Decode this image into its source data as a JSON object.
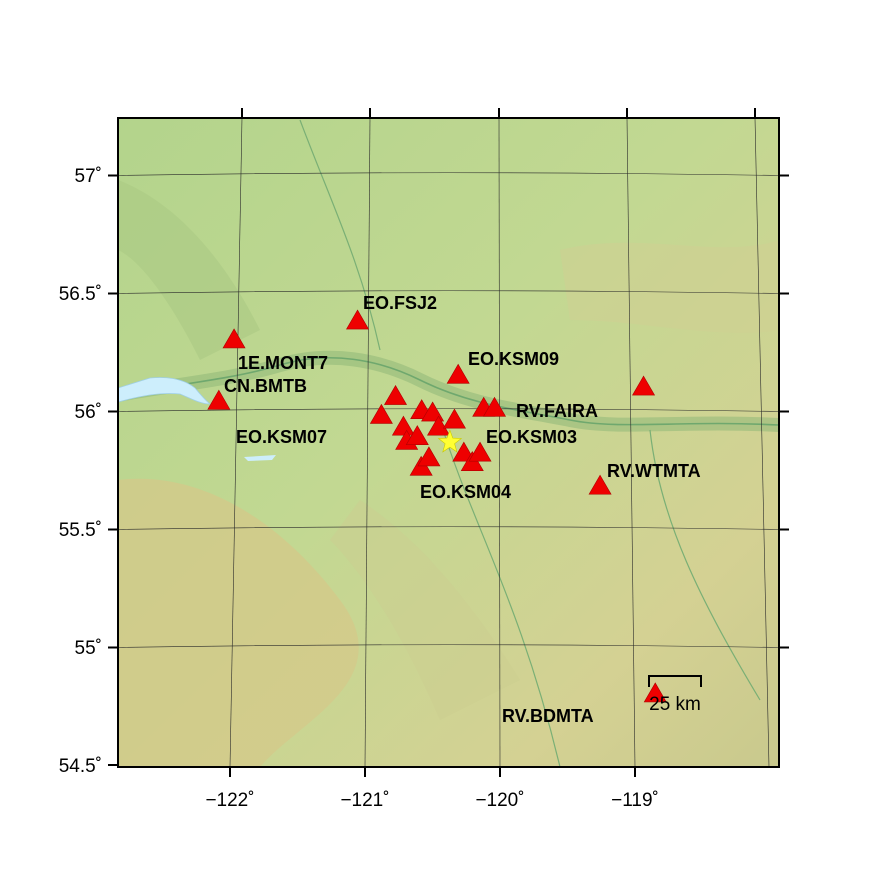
{
  "map": {
    "longitude_ticks": [
      "−122˚",
      "−121˚",
      "−120˚",
      "−119˚"
    ],
    "latitude_ticks": [
      "57˚",
      "56.5˚",
      "56˚",
      "55.5˚",
      "55˚",
      "54.5˚"
    ],
    "scale_bar": {
      "label": "25 km",
      "distance_km": 25
    },
    "colors": {
      "terrain_low": "#b9d58e",
      "terrain_high": "#d8cc92",
      "water": "#cdeefc",
      "station": "#ee0000",
      "epicenter": "#ffff33"
    },
    "epicenter": {
      "lon": -120.38,
      "lat": 55.87,
      "icon": "star-icon"
    },
    "labels": [
      {
        "text": "EO.FSJ2"
      },
      {
        "text": "1E.MONT7"
      },
      {
        "text": "CN.BMTB"
      },
      {
        "text": "EO.KSM09"
      },
      {
        "text": "RV.FAIRA"
      },
      {
        "text": "EO.KSM07"
      },
      {
        "text": "EO.KSM03"
      },
      {
        "text": "EO.KSM04"
      },
      {
        "text": "RV.WTMTA"
      },
      {
        "text": "RV.BDMTA"
      }
    ],
    "stations": [
      {
        "lon": -121.03,
        "lat": 56.38
      },
      {
        "lon": -121.95,
        "lat": 56.3
      },
      {
        "lon": -122.08,
        "lat": 56.04
      },
      {
        "lon": -120.3,
        "lat": 56.15
      },
      {
        "lon": -120.12,
        "lat": 56.01
      },
      {
        "lon": -120.04,
        "lat": 56.01
      },
      {
        "lon": -118.93,
        "lat": 56.1
      },
      {
        "lon": -120.88,
        "lat": 55.98
      },
      {
        "lon": -120.77,
        "lat": 56.06
      },
      {
        "lon": -120.72,
        "lat": 55.93
      },
      {
        "lon": -120.7,
        "lat": 55.87
      },
      {
        "lon": -120.62,
        "lat": 55.89
      },
      {
        "lon": -120.58,
        "lat": 56.0
      },
      {
        "lon": -120.5,
        "lat": 55.99
      },
      {
        "lon": -120.46,
        "lat": 55.93
      },
      {
        "lon": -120.34,
        "lat": 55.96
      },
      {
        "lon": -120.28,
        "lat": 55.82
      },
      {
        "lon": -120.22,
        "lat": 55.78
      },
      {
        "lon": -120.16,
        "lat": 55.82
      },
      {
        "lon": -120.6,
        "lat": 55.76
      },
      {
        "lon": -120.54,
        "lat": 55.8
      },
      {
        "lon": -119.28,
        "lat": 55.68
      },
      {
        "lon": -118.93,
        "lat": 54.8
      }
    ]
  }
}
